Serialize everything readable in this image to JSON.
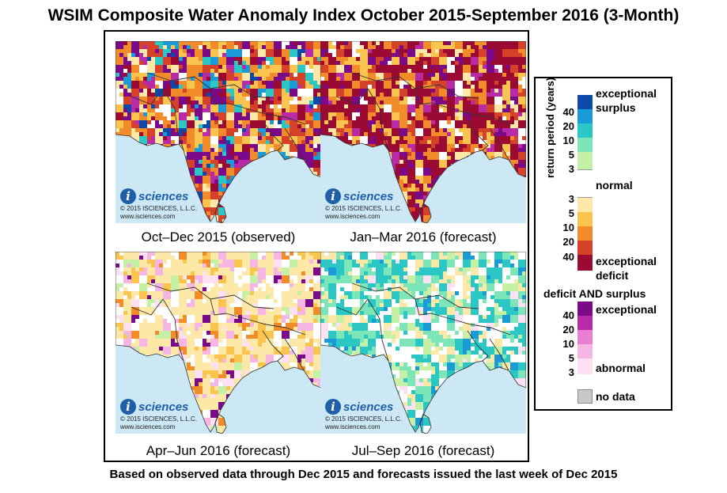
{
  "title": "WSIM Composite Water Anomaly Index October 2015-September 2016 (3-Month)",
  "footer": "Based on observed data through Dec 2015 and forecasts issued the last week of Dec 2015",
  "logo": {
    "letter": "i",
    "name": "sciences",
    "copyright": "© 2015 ISCIENCES, L.L.C.",
    "url": "www.isciences.com"
  },
  "panels": [
    {
      "caption": "Oct–Dec 2015 (observed)",
      "dominant": "mixed deficit and surplus"
    },
    {
      "caption": "Jan–Mar 2016 (forecast)",
      "dominant": "exceptional deficit"
    },
    {
      "caption": "Apr–Jun 2016 (forecast)",
      "dominant": "moderate deficit"
    },
    {
      "caption": "Jul–Sep 2016 (forecast)",
      "dominant": "surplus"
    }
  ],
  "legend": {
    "axis_label": "return period (years)",
    "surplus_numbers": [
      "40",
      "20",
      "10",
      "5",
      "3"
    ],
    "deficit_numbers": [
      "3",
      "5",
      "10",
      "20",
      "40"
    ],
    "both_numbers": [
      "40",
      "20",
      "10",
      "5",
      "3"
    ],
    "labels": {
      "exceptional_surplus": [
        "exceptional",
        "surplus"
      ],
      "normal": "normal",
      "exceptional_deficit": [
        "exceptional",
        "deficit"
      ],
      "both_heading": "deficit AND surplus",
      "both_exceptional": "exceptional",
      "both_abnormal": "abnormal",
      "no_data": "no data"
    },
    "colors": {
      "surplus": [
        "#0d49a8",
        "#1a9ad6",
        "#2bc7c4",
        "#7de6b8",
        "#c6f0a6"
      ],
      "normal": "#ffffff",
      "deficit": [
        "#fde8a8",
        "#f9c54f",
        "#f28c2b",
        "#d6412a",
        "#9b0a33"
      ],
      "both": [
        "#7b0a8a",
        "#b82aa6",
        "#e87fd0",
        "#f6b6e4",
        "#fde1f2"
      ],
      "no_data": "#c8c8c8",
      "ocean": "#cbe8f4",
      "border": "#333333"
    }
  }
}
